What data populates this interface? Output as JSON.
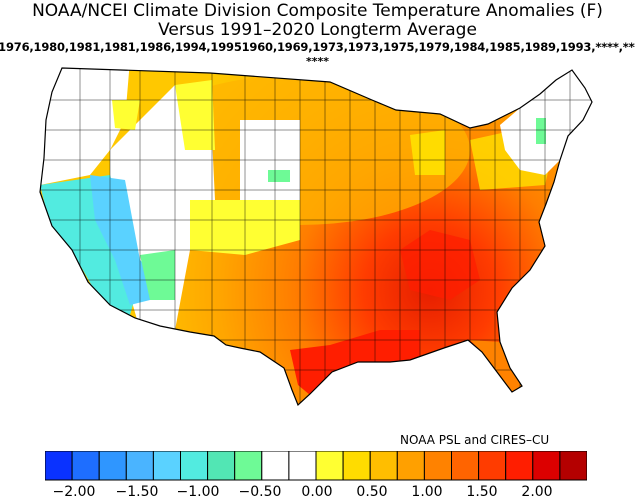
{
  "title": {
    "line1": "NOAA/NCEI Climate Division Composite Temperature Anomalies (F)",
    "line2": "Versus 1991–2020 Longterm Average",
    "years": ",1976,1980,1981,1981,1986,1994,19951960,1969,1973,1973,1975,1979,1984,1985,1989,1993,****,****",
    "years_cont": "****"
  },
  "credit": "NOAA PSL and CIRES–CU",
  "colorbar": {
    "colors": [
      "#0a32ff",
      "#1e6eff",
      "#2f96ff",
      "#4ab4ff",
      "#5ad2ff",
      "#52ebe0",
      "#52e6b4",
      "#6efa96",
      "#ffffff",
      "#ffffff",
      "#ffff32",
      "#ffdc00",
      "#ffbe00",
      "#ffa000",
      "#ff8200",
      "#ff6400",
      "#ff3c00",
      "#ff1e00",
      "#dc0000",
      "#b40000"
    ],
    "ticks": [
      "−2.00",
      "−1.50",
      "−1.00",
      "−0.50",
      "0.00",
      "0.50",
      "1.00",
      "1.50",
      "2.00"
    ]
  }
}
